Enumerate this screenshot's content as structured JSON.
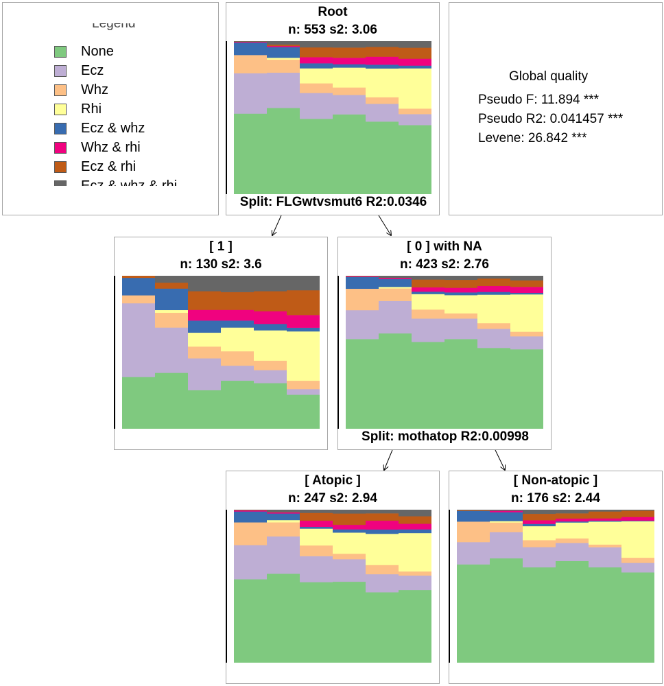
{
  "legend": {
    "title": "Legend",
    "states": [
      {
        "label": "None",
        "color": "#7fc97f"
      },
      {
        "label": "Ecz",
        "color": "#beaed4"
      },
      {
        "label": "Whz",
        "color": "#fdc086"
      },
      {
        "label": "Rhi",
        "color": "#ffff99"
      },
      {
        "label": "Ecz & whz",
        "color": "#386cb0"
      },
      {
        "label": "Whz & rhi",
        "color": "#f0027f"
      },
      {
        "label": "Ecz & rhi",
        "color": "#bf5b17"
      },
      {
        "label": "Ecz & whz & rhi",
        "color": "#666666"
      }
    ]
  },
  "global_quality": {
    "title": "Global quality",
    "lines": [
      "Pseudo F: 11.894 ***",
      "Pseudo R2: 0.041457 ***",
      "Levene: 26.842 ***"
    ]
  },
  "nodes": [
    {
      "id": "root",
      "label": "Root",
      "stats": "n: 553 s2: 3.06",
      "split": "Split: FLGwtvsmut6 R2:0.0346",
      "distribution": [
        [
          0.527,
          0.264,
          0.119,
          0,
          0.082,
          0.004,
          0.002,
          0.002
        ],
        [
          0.564,
          0.231,
          0.085,
          0.012,
          0.07,
          0.007,
          0.009,
          0.022
        ],
        [
          0.493,
          0.169,
          0.063,
          0.098,
          0.033,
          0.04,
          0.064,
          0.04
        ],
        [
          0.522,
          0.127,
          0.049,
          0.13,
          0.022,
          0.042,
          0.067,
          0.041
        ],
        [
          0.475,
          0.116,
          0.043,
          0.188,
          0.025,
          0.052,
          0.064,
          0.037
        ],
        [
          0.452,
          0.072,
          0.036,
          0.263,
          0.018,
          0.045,
          0.072,
          0.042
        ]
      ]
    },
    {
      "id": "node-1",
      "label": "[ 1 ]",
      "stats": "n: 130 s2: 3.6",
      "split": "",
      "distribution": [
        [
          0.339,
          0.482,
          0.052,
          0,
          0.114,
          0,
          0.013,
          0
        ],
        [
          0.366,
          0.296,
          0.097,
          0.018,
          0.14,
          0,
          0.039,
          0.044
        ],
        [
          0.253,
          0.208,
          0.077,
          0.091,
          0.079,
          0.07,
          0.122,
          0.1
        ],
        [
          0.315,
          0.098,
          0.094,
          0.155,
          0.046,
          0.07,
          0.116,
          0.106
        ],
        [
          0.299,
          0.085,
          0.062,
          0.198,
          0.042,
          0.083,
          0.131,
          0.1
        ],
        [
          0.223,
          0.037,
          0.055,
          0.322,
          0.024,
          0.083,
          0.162,
          0.094
        ]
      ]
    },
    {
      "id": "node-0",
      "label": "[ 0 ] with NA",
      "stats": "n: 423 s2: 2.76",
      "split": "Split: mothatop R2:0.00998",
      "distribution": [
        [
          0.587,
          0.189,
          0.14,
          0,
          0.077,
          0.004,
          0.002,
          0.001
        ],
        [
          0.624,
          0.212,
          0.082,
          0.01,
          0.052,
          0.007,
          0.001,
          0.012
        ],
        [
          0.568,
          0.153,
          0.059,
          0.101,
          0.016,
          0.028,
          0.051,
          0.024
        ],
        [
          0.587,
          0.134,
          0.034,
          0.119,
          0.018,
          0.03,
          0.052,
          0.026
        ],
        [
          0.529,
          0.125,
          0.037,
          0.186,
          0.018,
          0.039,
          0.049,
          0.017
        ],
        [
          0.52,
          0.085,
          0.03,
          0.244,
          0.01,
          0.039,
          0.043,
          0.029
        ]
      ]
    },
    {
      "id": "atopic",
      "label": "[ Atopic ]",
      "stats": "n: 247 s2: 2.94",
      "split": "",
      "distribution": [
        [
          0.546,
          0.223,
          0.149,
          0,
          0.071,
          0.007,
          0.002,
          0.002
        ],
        [
          0.582,
          0.244,
          0.092,
          0.015,
          0.043,
          0.007,
          0.001,
          0.016
        ],
        [
          0.527,
          0.17,
          0.07,
          0.11,
          0.012,
          0.04,
          0.051,
          0.02
        ],
        [
          0.53,
          0.147,
          0.036,
          0.138,
          0.021,
          0.03,
          0.074,
          0.024
        ],
        [
          0.461,
          0.118,
          0.06,
          0.204,
          0.028,
          0.058,
          0.048,
          0.023
        ],
        [
          0.476,
          0.094,
          0.027,
          0.251,
          0.024,
          0.037,
          0.049,
          0.042
        ]
      ]
    },
    {
      "id": "non-atopic",
      "label": "[ Non-atopic ]",
      "stats": "n: 176 s2: 2.44",
      "split": "",
      "distribution": [
        [
          0.643,
          0.146,
          0.134,
          0,
          0.07,
          0,
          0.004,
          0.003
        ],
        [
          0.683,
          0.171,
          0.063,
          0.009,
          0.058,
          0.01,
          0,
          0.006
        ],
        [
          0.624,
          0.132,
          0.046,
          0.091,
          0.015,
          0.024,
          0.042,
          0.026
        ],
        [
          0.665,
          0.118,
          0.03,
          0.104,
          0.007,
          0.019,
          0.034,
          0.023
        ],
        [
          0.624,
          0.131,
          0.018,
          0.15,
          0.006,
          0.015,
          0.045,
          0.011
        ],
        [
          0.591,
          0.062,
          0.034,
          0.238,
          0.004,
          0.024,
          0.042,
          0.005
        ]
      ]
    }
  ]
}
